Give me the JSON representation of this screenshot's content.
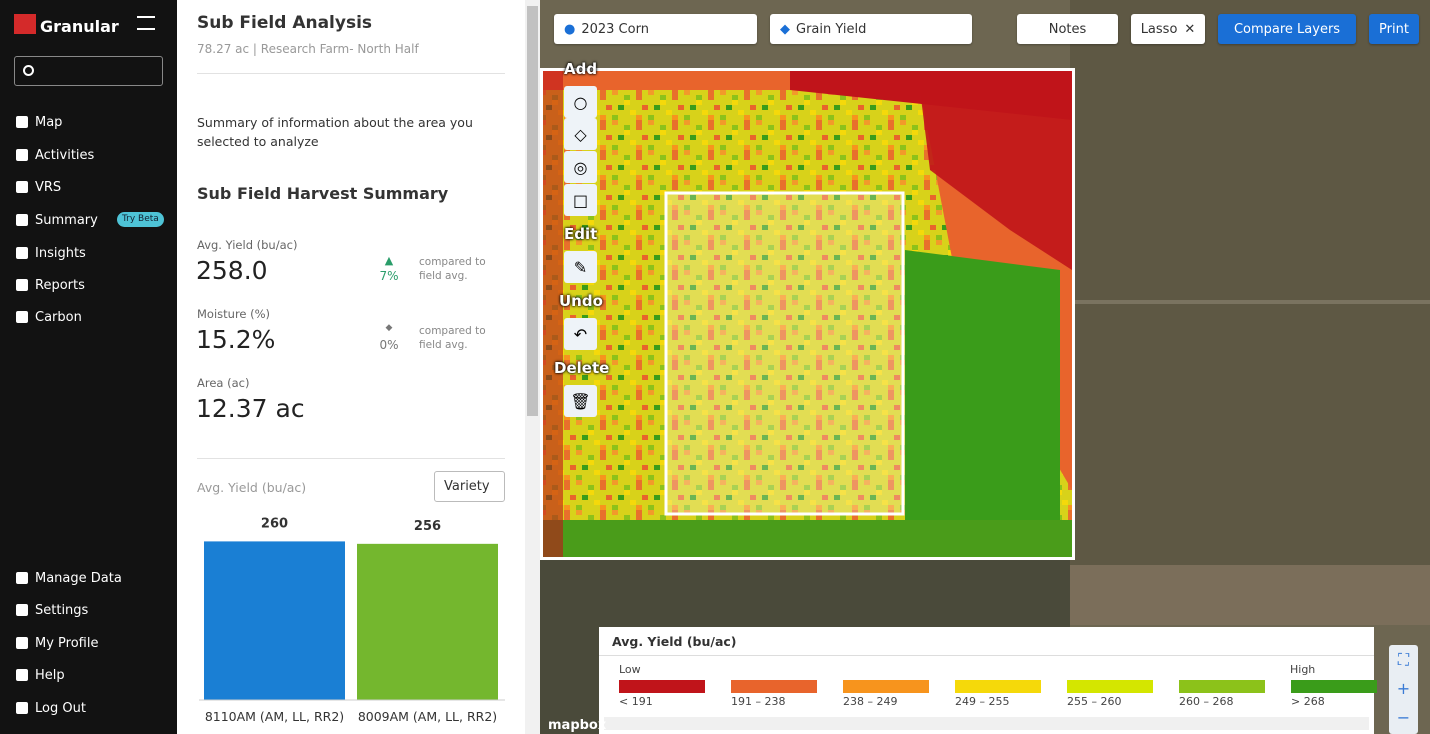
{
  "sidebar": {
    "brand": "Granular",
    "nav": [
      "Map",
      "Activities",
      "VRS",
      "Summary",
      "Insights",
      "Reports",
      "Carbon"
    ],
    "badge": "Try Beta",
    "bottom_nav": [
      "Manage Data",
      "Settings",
      "My Profile",
      "Help",
      "Log Out"
    ]
  },
  "panel": {
    "title": "Sub Field Analysis",
    "subtitle": "78.27 ac | Research Farm- North Half",
    "description": "Summary of information about the area you selected to analyze",
    "section_title": "Sub Field Harvest Summary",
    "stats": [
      {
        "label": "Avg. Yield (bu/ac)",
        "value": "258.0",
        "change": "7%",
        "note": "compared to field avg."
      },
      {
        "label": "Moisture (%)",
        "value": "15.2%",
        "change": "0%",
        "note": "compared to field avg."
      },
      {
        "label": "Area (ac)",
        "value": "12.37 ac"
      }
    ],
    "chart": {
      "type": "bar",
      "title": "Avg. Yield (bu/ac)",
      "dropdown": "Variety",
      "categories": [
        "8110AM (AM, LL, RR2)",
        "8009AM (AM, LL, RR2)"
      ],
      "values": [
        260,
        256
      ],
      "colors": [
        "#1a7fd4",
        "#74b72e"
      ],
      "ylim": [
        0,
        300
      ]
    }
  },
  "map": {
    "crop_select": "2023 Corn",
    "layer_select": "Grain Yield",
    "buttons": {
      "notes": "Notes",
      "lasso": "Lasso",
      "compare": "Compare Layers",
      "print": "Print"
    },
    "tools": {
      "add": "Add",
      "edit": "Edit",
      "undo": "Undo",
      "delete": "Delete"
    },
    "legend": {
      "title": "Avg. Yield (bu/ac)",
      "low": "Low",
      "high": "High",
      "bins": [
        {
          "label": "< 191",
          "color": "#c0141a"
        },
        {
          "label": "191 – 238",
          "color": "#e8642c"
        },
        {
          "label": "238 – 249",
          "color": "#f7941d"
        },
        {
          "label": "249 – 255",
          "color": "#f5d90a"
        },
        {
          "label": "255 – 260",
          "color": "#d4e600"
        },
        {
          "label": "260 – 268",
          "color": "#8cc21a"
        },
        {
          "label": "> 268",
          "color": "#3a9c1a"
        }
      ]
    },
    "attribution": "mapbox"
  }
}
